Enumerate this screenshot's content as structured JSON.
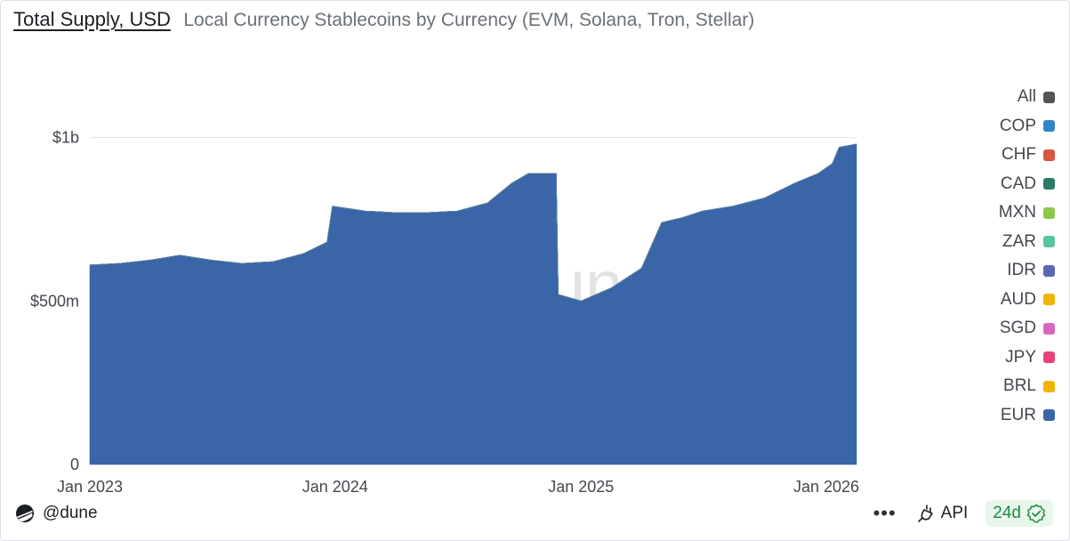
{
  "header": {
    "tab_label": "Total Supply, USD",
    "title": "Local Currency Stablecoins by Currency (EVM, Solana, Tron, Stellar)"
  },
  "watermark": "Dune",
  "footer": {
    "handle": "@dune",
    "more_label": "•••",
    "api_label": "API",
    "age_label": "24d"
  },
  "colors": {
    "EUR": "#3a65a8",
    "BRL": "#f0b400",
    "JPY": "#e8417a",
    "SGD": "#d468c0",
    "AUD": "#f0b400",
    "IDR": "#5b68b0",
    "ZAR": "#5ac4a0",
    "MXN": "#8cc84a",
    "CAD": "#2b7a6a",
    "CHF": "#d9553f",
    "COP": "#2f86c4",
    "All": "#555555"
  },
  "chart_data": {
    "type": "area",
    "stacked": true,
    "title": "Local Currency Stablecoins by Currency (EVM, Solana, Tron, Stellar)",
    "xlabel": "",
    "ylabel": "Total Supply, USD",
    "ylim": [
      0,
      1200000000
    ],
    "yticks": [
      {
        "value": 0,
        "label": "0"
      },
      {
        "value": 500000000,
        "label": "$500m"
      },
      {
        "value": 1000000000,
        "label": "$1b"
      }
    ],
    "xticks": [
      {
        "date": "2023-01-01",
        "label": "Jan 2023"
      },
      {
        "date": "2024-01-01",
        "label": "Jan 2024"
      },
      {
        "date": "2025-01-01",
        "label": "Jan 2025"
      },
      {
        "date": "2026-01-01",
        "label": "Jan 2026"
      }
    ],
    "x_range": [
      "2023-01-01",
      "2026-02-15"
    ],
    "dates": [
      "2023-01-01",
      "2023-02-15",
      "2023-04-01",
      "2023-05-15",
      "2023-07-01",
      "2023-08-15",
      "2023-10-01",
      "2023-11-15",
      "2023-12-20",
      "2023-12-28",
      "2024-02-15",
      "2024-04-01",
      "2024-05-15",
      "2024-07-01",
      "2024-08-15",
      "2024-09-20",
      "2024-10-15",
      "2024-11-25",
      "2024-11-28",
      "2025-01-01",
      "2025-02-15",
      "2025-04-01",
      "2025-05-01",
      "2025-06-01",
      "2025-07-01",
      "2025-08-15",
      "2025-10-01",
      "2025-11-15",
      "2025-12-20",
      "2026-01-10",
      "2026-01-20",
      "2026-02-15"
    ],
    "series": [
      {
        "name": "EUR",
        "values": [
          610,
          615,
          625,
          640,
          625,
          615,
          620,
          645,
          680,
          790,
          775,
          770,
          770,
          775,
          800,
          860,
          890,
          890,
          520,
          500,
          540,
          600,
          740,
          755,
          775,
          790,
          815,
          860,
          890,
          920,
          970,
          980
        ]
      },
      {
        "name": "BRL",
        "values": [
          0,
          0,
          0,
          0,
          0,
          0,
          0,
          0,
          0,
          0,
          0,
          0,
          0,
          0,
          0,
          0,
          0,
          0,
          0,
          0,
          0,
          0,
          0,
          0,
          0,
          0,
          0,
          0,
          0,
          0,
          0,
          0
        ]
      },
      {
        "name": "JPY",
        "values": [
          0,
          0,
          0,
          0,
          0,
          0,
          0,
          0,
          0,
          0,
          0,
          0,
          0,
          0,
          0,
          0,
          0,
          0,
          0,
          0,
          0,
          0,
          0,
          0,
          0,
          0,
          0,
          0,
          0,
          0,
          0,
          0
        ]
      },
      {
        "name": "SGD",
        "values": [
          0,
          0,
          0,
          0,
          0,
          0,
          0,
          0,
          0,
          0,
          0,
          0,
          0,
          0,
          0,
          0,
          0,
          0,
          0,
          0,
          0,
          0,
          0,
          0,
          0,
          0,
          0,
          0,
          0,
          0,
          0,
          0
        ]
      },
      {
        "name": "AUD",
        "values": [
          0,
          0,
          0,
          0,
          0,
          0,
          0,
          0,
          0,
          0,
          0,
          0,
          0,
          0,
          0,
          0,
          0,
          0,
          0,
          0,
          0,
          0,
          0,
          0,
          0,
          0,
          0,
          0,
          0,
          0,
          0,
          0
        ]
      },
      {
        "name": "IDR",
        "values": [
          0,
          0,
          0,
          0,
          0,
          0,
          0,
          0,
          0,
          0,
          0,
          0,
          0,
          0,
          0,
          0,
          0,
          0,
          0,
          0,
          0,
          0,
          0,
          0,
          0,
          0,
          0,
          0,
          0,
          0,
          0,
          0
        ]
      },
      {
        "name": "ZAR",
        "values": [
          0,
          0,
          0,
          0,
          0,
          0,
          0,
          0,
          0,
          0,
          0,
          0,
          0,
          0,
          0,
          0,
          0,
          0,
          0,
          0,
          0,
          0,
          0,
          0,
          0,
          0,
          0,
          0,
          0,
          0,
          0,
          0
        ]
      },
      {
        "name": "MXN",
        "values": [
          0,
          0,
          0,
          0,
          0,
          0,
          0,
          0,
          0,
          0,
          0,
          0,
          0,
          0,
          0,
          0,
          0,
          0,
          0,
          0,
          0,
          0,
          0,
          0,
          0,
          0,
          0,
          0,
          0,
          0,
          0,
          0
        ]
      },
      {
        "name": "CAD",
        "values": [
          0,
          0,
          0,
          0,
          0,
          0,
          0,
          0,
          0,
          0,
          0,
          0,
          0,
          0,
          0,
          0,
          0,
          0,
          0,
          0,
          0,
          0,
          0,
          0,
          0,
          0,
          0,
          0,
          0,
          0,
          0,
          0
        ]
      },
      {
        "name": "CHF",
        "values": [
          0,
          0,
          0,
          0,
          0,
          0,
          0,
          0,
          0,
          0,
          0,
          0,
          0,
          0,
          0,
          0,
          0,
          0,
          0,
          0,
          0,
          0,
          0,
          0,
          0,
          0,
          0,
          0,
          0,
          0,
          0,
          0
        ]
      },
      {
        "name": "COP",
        "values": [
          0,
          0,
          0,
          0,
          0,
          0,
          0,
          0,
          0,
          0,
          0,
          0,
          0,
          0,
          0,
          0,
          0,
          0,
          0,
          0,
          0,
          0,
          0,
          0,
          0,
          0,
          0,
          0,
          0,
          0,
          0,
          0
        ]
      }
    ],
    "legend": [
      "All",
      "COP",
      "CHF",
      "CAD",
      "MXN",
      "ZAR",
      "IDR",
      "AUD",
      "SGD",
      "JPY",
      "BRL",
      "EUR"
    ],
    "legend_position": "right"
  }
}
